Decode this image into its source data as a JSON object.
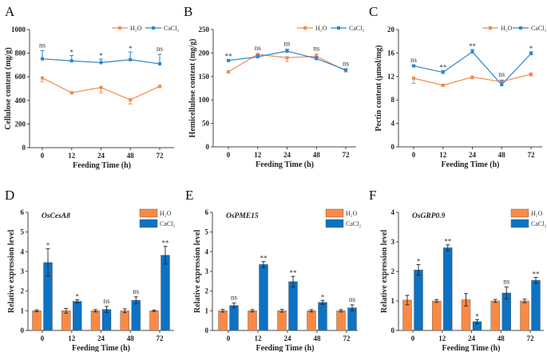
{
  "colors": {
    "h2o_line": "#F48A52",
    "cacl2_line": "#2A86CF",
    "h2o_bar": "#F98A45",
    "cacl2_bar": "#0E72C2"
  },
  "chart_data": [
    {
      "panel": "A",
      "type": "line",
      "xlabel": "Feeding Time (h)",
      "ylabel": "Cellulose content (mg/g)",
      "categories": [
        "0",
        "12",
        "24",
        "48",
        "72"
      ],
      "ylim": [
        0,
        1000
      ],
      "yticks": [
        "0",
        "200",
        "400",
        "600",
        "800",
        "1000"
      ],
      "legend": "top-right",
      "series": [
        {
          "name": "H₂O",
          "values": [
            590,
            465,
            510,
            405,
            520
          ],
          "errors": [
            30,
            8,
            45,
            35,
            12
          ]
        },
        {
          "name": "CaCl₂",
          "values": [
            752,
            735,
            720,
            745,
            710
          ],
          "errors": [
            70,
            45,
            30,
            65,
            80
          ]
        }
      ],
      "significance": [
        "ns",
        "*",
        "*",
        "*",
        "ns"
      ]
    },
    {
      "panel": "B",
      "type": "line",
      "xlabel": "Feeding Time (h)",
      "ylabel": "Hemicellulose content (mg/g)",
      "categories": [
        "0",
        "12",
        "24",
        "48",
        "72"
      ],
      "ylim": [
        0,
        250
      ],
      "yticks": [
        "0",
        "50",
        "100",
        "150",
        "200",
        "250"
      ],
      "legend": "top-right",
      "series": [
        {
          "name": "H₂O",
          "values": [
            160,
            197,
            190,
            193,
            162
          ],
          "errors": [
            3,
            2,
            8,
            5,
            2
          ]
        },
        {
          "name": "CaCl₂",
          "values": [
            184,
            192,
            204,
            188,
            164
          ],
          "errors": [
            2,
            4,
            4,
            4,
            2
          ]
        }
      ],
      "significance": [
        "**",
        "ns",
        "ns",
        "ns",
        "ns"
      ]
    },
    {
      "panel": "C",
      "type": "line",
      "xlabel": "Feeding Time (h)",
      "ylabel": "Pectin content (μmol/mg)",
      "categories": [
        "0",
        "12",
        "24",
        "48",
        "72"
      ],
      "ylim": [
        0,
        20
      ],
      "yticks": [
        "0",
        "4",
        "8",
        "12",
        "16",
        "20"
      ],
      "legend": "top-right",
      "series": [
        {
          "name": "H₂O",
          "values": [
            11.7,
            10.5,
            11.9,
            11.1,
            12.4
          ],
          "errors": [
            0.9,
            0.1,
            0.3,
            0.3,
            0.3
          ]
        },
        {
          "name": "CaCl₂",
          "values": [
            13.8,
            12.7,
            16.2,
            10.6,
            15.9
          ],
          "errors": [
            0.1,
            0.3,
            0.4,
            0.7,
            0.3
          ]
        }
      ],
      "significance": [
        "ns",
        "**",
        "**",
        "ns",
        "*"
      ]
    },
    {
      "panel": "D",
      "type": "bar",
      "title": "OsCesA8",
      "xlabel": "Feeding Time (h)",
      "ylabel": "Relative expression level",
      "categories": [
        "0",
        "12",
        "24",
        "48",
        "72"
      ],
      "ylim": [
        0,
        6
      ],
      "yticks": [
        "0",
        "1",
        "2",
        "3",
        "4",
        "5",
        "6"
      ],
      "legend": "top-right",
      "series": [
        {
          "name": "H₂O",
          "values": [
            1,
            1,
            1,
            1,
            1
          ],
          "errors": [
            0.05,
            0.12,
            0.06,
            0.1,
            0.04
          ]
        },
        {
          "name": "CaCl₂",
          "values": [
            3.45,
            1.48,
            1.07,
            1.53,
            3.82
          ],
          "errors": [
            0.7,
            0.08,
            0.15,
            0.18,
            0.45
          ]
        }
      ],
      "significance": [
        "*",
        "*",
        "ns",
        "ns",
        "**"
      ]
    },
    {
      "panel": "E",
      "type": "bar",
      "title": "OsPME15",
      "xlabel": "Feeding Time (h)",
      "ylabel": "Relative expression level",
      "categories": [
        "0",
        "12",
        "24",
        "48",
        "72"
      ],
      "ylim": [
        0,
        6
      ],
      "yticks": [
        "0",
        "1",
        "2",
        "3",
        "4",
        "5",
        "6"
      ],
      "legend": "top-right",
      "series": [
        {
          "name": "H₂O",
          "values": [
            1,
            1,
            1,
            1,
            1
          ],
          "errors": [
            0.07,
            0.06,
            0.07,
            0.06,
            0.06
          ]
        },
        {
          "name": "CaCl₂",
          "values": [
            1.27,
            3.35,
            2.48,
            1.43,
            1.15
          ],
          "errors": [
            0.12,
            0.15,
            0.27,
            0.1,
            0.15
          ]
        }
      ],
      "significance": [
        "ns",
        "**",
        "**",
        "*",
        "ns"
      ]
    },
    {
      "panel": "F",
      "type": "bar",
      "title": "OsGRP0.9",
      "xlabel": "Feeding Time (h)",
      "ylabel": "Relative expression level",
      "categories": [
        "0",
        "12",
        "24",
        "48",
        "72"
      ],
      "ylim": [
        0,
        4
      ],
      "yticks": [
        "0",
        "1",
        "2",
        "3",
        "4"
      ],
      "legend": "top-right",
      "series": [
        {
          "name": "H₂O",
          "values": [
            1.03,
            1.0,
            1.04,
            1.0,
            1.0
          ],
          "errors": [
            0.16,
            0.05,
            0.21,
            0.05,
            0.06
          ]
        },
        {
          "name": "CaCl₂",
          "values": [
            2.05,
            2.8,
            0.3,
            1.27,
            1.7
          ],
          "errors": [
            0.18,
            0.1,
            0.07,
            0.2,
            0.1
          ]
        }
      ],
      "significance": [
        "*",
        "**",
        "*",
        "ns",
        "**"
      ]
    }
  ]
}
